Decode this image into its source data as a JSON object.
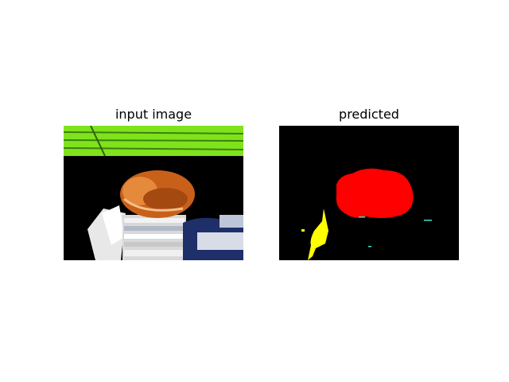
{
  "figure": {
    "left_title": "input image",
    "right_title": "predicted"
  },
  "colors": {
    "background": "#ffffff",
    "grass": "#7fe31b",
    "mask_cat": "#ff0000",
    "mask_person": "#ffff00",
    "mask_other": "#40e0d0",
    "mask_background": "#000000"
  }
}
